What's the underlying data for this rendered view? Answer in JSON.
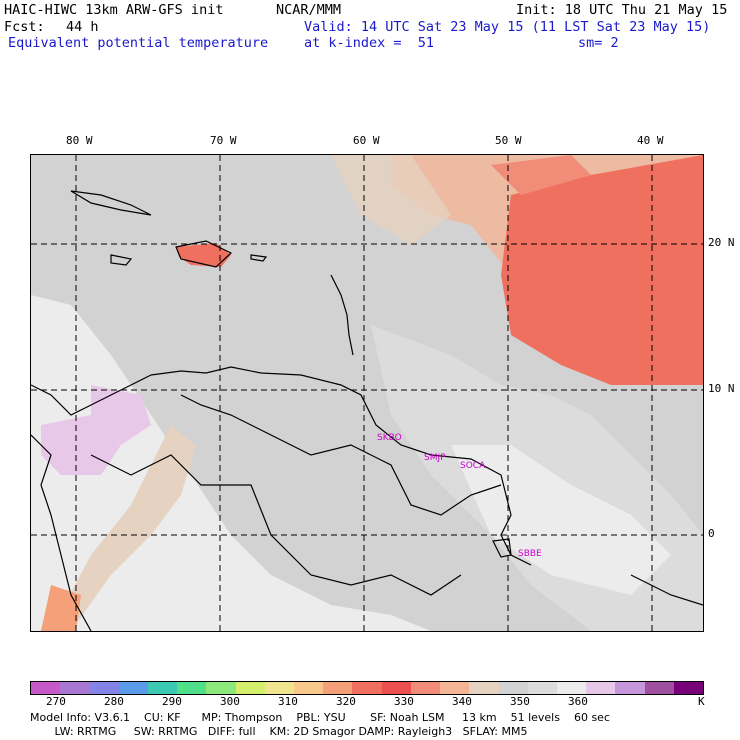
{
  "header": {
    "model": "HAIC-HIWC 13km ARW-GFS init",
    "org": "NCAR/MMM",
    "init": "Init: 18 UTC Thu 21 May 15",
    "fcst_label": "Fcst:",
    "fcst_value": "44 h",
    "valid": "Valid: 14 UTC Sat 23 May 15 (11 LST Sat 23 May 15)",
    "field": "Equivalent potential temperature",
    "level": "at k-index =  51",
    "smooth": "sm= 2"
  },
  "axes": {
    "lon_labels": [
      "80 W",
      "70 W",
      "60 W",
      "50 W",
      "40 W"
    ],
    "lat_labels": [
      "20 N",
      "10 N",
      "0"
    ]
  },
  "cities": [
    "SKBO",
    "SMJP",
    "SOCA",
    "SBBE"
  ],
  "colorbar": {
    "unit": "K",
    "tick_labels": [
      "270",
      "280",
      "290",
      "300",
      "310",
      "320",
      "330",
      "340",
      "350",
      "360"
    ],
    "colors": [
      "#c65ac6",
      "#a878d2",
      "#8484e6",
      "#5a9ae6",
      "#3ccab4",
      "#50e08c",
      "#8ee87a",
      "#d4ee6e",
      "#f0e48c",
      "#f8c88c",
      "#f4a078",
      "#f07060",
      "#ee5050",
      "#f08c78",
      "#f4b496",
      "#e6d2c0",
      "#d2d2d2",
      "#dcdcdc",
      "#ececec",
      "#e8c8e8",
      "#c896dc",
      "#a050a0",
      "#780078"
    ]
  },
  "footer": {
    "line1": "Model Info: V3.6.1    CU: KF      MP: Thompson    PBL: YSU       SF: Noah LSM     13 km    51 levels    60 sec",
    "line2": "       LW: RRTMG     SW: RRTMG   DIFF: full    KM: 2D Smagor DAMP: Rayleigh3   SFLAY: MM5"
  }
}
